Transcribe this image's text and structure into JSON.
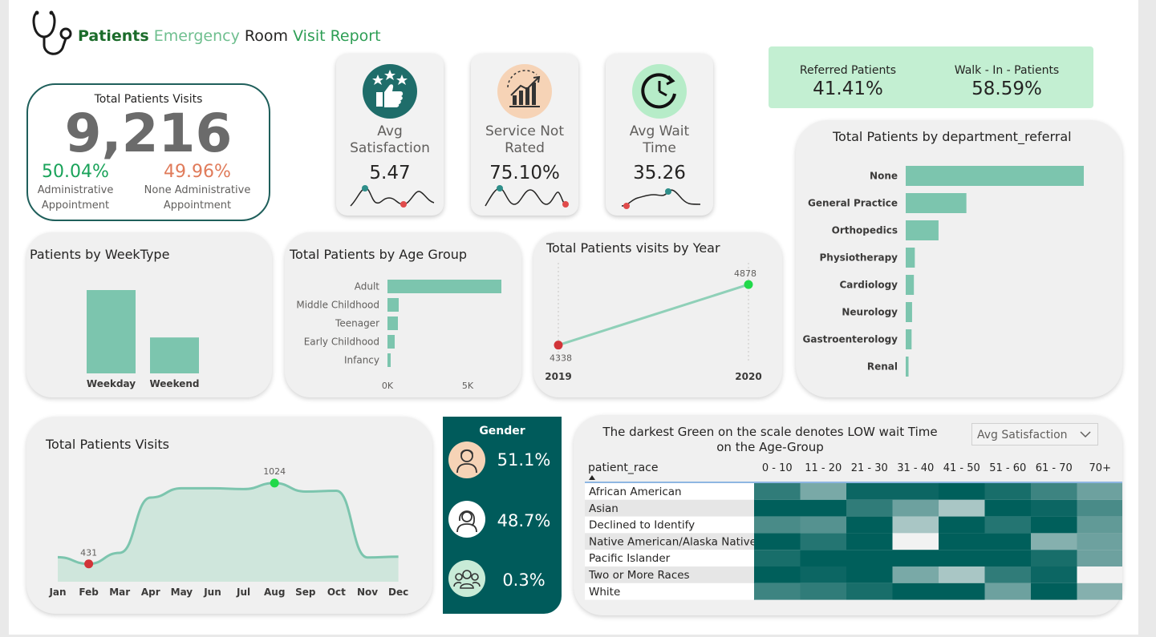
{
  "header": {
    "title_w1": "Patients",
    "title_w2": "Emergency",
    "title_w3": "Room",
    "title_w4": "Visit Report"
  },
  "total_visits": {
    "label": "Total Patients Visits",
    "value": "9,216",
    "admin_pct": "50.04%",
    "admin_label_1": "Administrative",
    "admin_label_2": "Appointment",
    "none_pct": "49.96%",
    "none_label_1": "None Administrative",
    "none_label_2": "Appointment"
  },
  "kpis": [
    {
      "label_1": "Avg",
      "label_2": "Satisfaction",
      "value": "5.47",
      "icon": "thumbs-up-stars-icon"
    },
    {
      "label_1": "Service Not",
      "label_2": "Rated",
      "value": "75.10%",
      "icon": "growth-chart-icon"
    },
    {
      "label_1": "Avg Wait",
      "label_2": "Time",
      "value": "35.26",
      "icon": "clock-icon"
    }
  ],
  "referral_summary": {
    "referred_label": "Referred Patients",
    "referred_value": "41.41%",
    "walkin_label": "Walk - In - Patients",
    "walkin_value": "58.59%"
  },
  "dept_chart": {
    "title": "Total Patients by department_referral"
  },
  "week_chart": {
    "title": "Patients by WeekType"
  },
  "age_chart": {
    "title": "Total Patients by Age Group"
  },
  "year_chart": {
    "title": "Total Patients visits by Year"
  },
  "month_chart": {
    "title": "Total Patients Visits"
  },
  "gender": {
    "title": "Gender",
    "items": [
      {
        "pct": "51.1%",
        "icon": "male-user-icon"
      },
      {
        "pct": "48.7%",
        "icon": "female-user-icon"
      },
      {
        "pct": "0.3%",
        "icon": "group-users-icon"
      }
    ]
  },
  "heatmap": {
    "title_line1": "The darkest Green on the scale denotes LOW wait Time",
    "title_line2": "on the Age-Group",
    "dropdown_value": "Avg Satisfaction",
    "row_header": "patient_race",
    "columns": [
      "0 - 10",
      "11 - 20",
      "21 - 30",
      "31 - 40",
      "41 - 50",
      "51 - 60",
      "61 - 70",
      "70+"
    ],
    "rows": [
      "African American",
      "Asian",
      "Declined to Identify",
      "Native American/Alaska Native",
      "Pacific Islander",
      "Two or More Races",
      "White"
    ],
    "colors": {
      "low": "#005f5b",
      "high": "#f2f2f2"
    }
  },
  "chart_data": [
    {
      "type": "bar",
      "title": "Total Patients by department_referral",
      "categories": [
        "None",
        "General Practice",
        "Orthopedics",
        "Physiotherapy",
        "Cardiology",
        "Neurology",
        "Gastroenterology",
        "Renal"
      ],
      "values": [
        5400,
        1840,
        995,
        276,
        248,
        193,
        178,
        86
      ],
      "color": "#7cc5ae"
    },
    {
      "type": "bar",
      "title": "Patients by WeekType",
      "categories": [
        "Weekday",
        "Weekend"
      ],
      "values": [
        6440,
        2776
      ],
      "color": "#7cc5ae"
    },
    {
      "type": "bar",
      "title": "Total Patients by Age Group",
      "categories": [
        "Adult",
        "Middle Childhood",
        "Teenager",
        "Early Childhood",
        "Infancy"
      ],
      "values": [
        7100,
        700,
        650,
        450,
        200
      ],
      "xticks": [
        "0K",
        "5K"
      ],
      "xlim": [
        0,
        7500
      ],
      "color": "#7cc5ae"
    },
    {
      "type": "line",
      "title": "Total Patients visits by Year",
      "categories": [
        "2019",
        "2020"
      ],
      "values": [
        4338,
        4878
      ],
      "value_labels": [
        "4338",
        "4878"
      ],
      "min_color": "#d13438",
      "max_color": "#21d94a"
    },
    {
      "type": "area",
      "title": "Total Patients Visits",
      "categories": [
        "Jan",
        "Feb",
        "Mar",
        "Apr",
        "May",
        "Jun",
        "Jul",
        "Aug",
        "Sep",
        "Oct",
        "Nov",
        "Dec"
      ],
      "values": [
        480,
        431,
        512,
        918,
        986,
        986,
        980,
        1024,
        962,
        968,
        478,
        484
      ],
      "min_label": "431",
      "max_label": "1024",
      "ylim": [
        300,
        1100
      ]
    },
    {
      "type": "heatmap",
      "title": "The darkest Green on the scale denotes LOW wait Time on the Age-Group",
      "metric": "Avg Satisfaction",
      "values": [
        [
          0.2,
          0.5,
          0.05,
          0.05,
          0.0,
          0.1,
          0.25,
          0.45
        ],
        [
          0.0,
          0.0,
          0.2,
          0.45,
          0.7,
          0.0,
          0.05,
          0.3
        ],
        [
          0.3,
          0.35,
          0.0,
          0.7,
          0.0,
          0.15,
          0.0,
          0.4
        ],
        [
          0.0,
          0.15,
          0.0,
          1.0,
          0.0,
          0.0,
          0.55,
          0.45
        ],
        [
          0.1,
          0.0,
          0.0,
          0.0,
          0.0,
          0.0,
          0.1,
          0.45
        ],
        [
          0.0,
          0.05,
          0.0,
          0.5,
          0.7,
          0.2,
          0.05,
          1.0
        ],
        [
          0.25,
          0.2,
          0.1,
          0.0,
          0.0,
          0.45,
          0.0,
          0.55
        ]
      ]
    }
  ]
}
